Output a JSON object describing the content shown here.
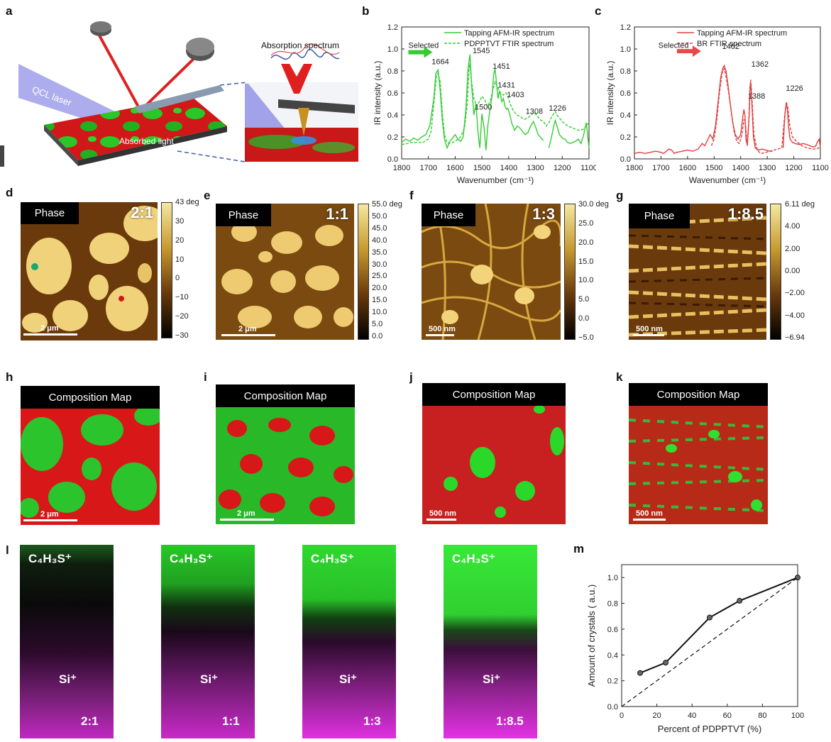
{
  "panel_letters": {
    "a": "a",
    "b": "b",
    "c": "c",
    "d": "d",
    "e": "e",
    "f": "f",
    "g": "g",
    "h": "h",
    "i": "i",
    "j": "j",
    "k": "k",
    "l": "l",
    "m": "m"
  },
  "panel_a": {
    "qcl_label": "QCL laser",
    "absorbed_label": "Absorbed light",
    "spectrum_label": "Absorption spectrum"
  },
  "phase_panels": [
    {
      "tag": "Phase",
      "ratio": "2:1",
      "scale": "2 μm",
      "ticks": [
        "43 deg",
        "30",
        "20",
        "10",
        "0",
        "−10",
        "−20",
        "−30"
      ]
    },
    {
      "tag": "Phase",
      "ratio": "1:1",
      "scale": "2 μm",
      "ticks": [
        "55.0 deg",
        "50.0",
        "45.0",
        "40.0",
        "35.0",
        "30.0",
        "25.0",
        "20.0",
        "15.0",
        "10.0",
        "5.0",
        "0.0"
      ]
    },
    {
      "tag": "Phase",
      "ratio": "1:3",
      "scale": "500 nm",
      "ticks": [
        "30.0 deg",
        "25.0",
        "20.0",
        "15.0",
        "10.0",
        "5.0",
        "0.0",
        "−5.0"
      ]
    },
    {
      "tag": "Phase",
      "ratio": "1:8.5",
      "scale": "500 nm",
      "ticks": [
        "6.11 deg",
        "4.00",
        "2.00",
        "0.00",
        "−2.00",
        "−4.00",
        "−6.94"
      ]
    }
  ],
  "comp_panels": [
    {
      "tag": "Composition Map",
      "scale": "2 μm"
    },
    {
      "tag": "Composition Map",
      "scale": "2 μm"
    },
    {
      "tag": "Composition Map",
      "scale": "500 nm"
    },
    {
      "tag": "Composition Map",
      "scale": "500 nm"
    }
  ],
  "tof_panels": [
    {
      "top": "C₄H₃S⁺",
      "mid": "Si⁺",
      "ratio": "2:1"
    },
    {
      "top": "C₄H₃S⁺",
      "mid": "Si⁺",
      "ratio": "1:1"
    },
    {
      "top": "C₄H₃S⁺",
      "mid": "Si⁺",
      "ratio": "1:3"
    },
    {
      "top": "C₄H₃S⁺",
      "mid": "Si⁺",
      "ratio": "1:8.5"
    }
  ],
  "chart_data": [
    {
      "type": "line",
      "panel": "b",
      "xlabel": "Wavenumber (cm⁻¹)",
      "ylabel": "IR intensity (a.u.)",
      "xlim": [
        1800,
        1100
      ],
      "ylim": [
        0,
        1.2
      ],
      "xticks": [
        1800,
        1700,
        1600,
        1500,
        1400,
        1300,
        1200,
        1100
      ],
      "yticks": [
        0.0,
        0.2,
        0.4,
        0.6,
        0.8,
        1.0,
        1.2
      ],
      "color": "#33cc33",
      "series": [
        {
          "name": "Tapping AFM-IR spectrum",
          "style": "solid",
          "x": [
            1800,
            1785,
            1770,
            1755,
            1740,
            1725,
            1710,
            1695,
            1680,
            1672,
            1664,
            1656,
            1648,
            1640,
            1630,
            1620,
            1610,
            1600,
            1590,
            1580,
            1570,
            1560,
            1552,
            1545,
            1538,
            1530,
            1522,
            1515,
            1508,
            1500,
            1492,
            1485,
            1478,
            1470,
            1462,
            1456,
            1451,
            1446,
            1440,
            1434,
            1431,
            1426,
            1420,
            1414,
            1408,
            1403,
            1396,
            1388,
            1378,
            1368,
            1358,
            1348,
            1338,
            1328,
            1318,
            1308,
            1298,
            1290,
            1282,
            1276,
            1270
          ],
          "y": [
            0.15,
            0.18,
            0.16,
            0.19,
            0.17,
            0.2,
            0.22,
            0.3,
            0.55,
            0.78,
            0.81,
            0.62,
            0.35,
            0.18,
            0.1,
            0.16,
            0.19,
            0.22,
            0.18,
            0.16,
            0.2,
            0.45,
            0.82,
            0.95,
            0.65,
            0.4,
            0.5,
            0.25,
            0.1,
            0.41,
            0.28,
            0.08,
            0.3,
            0.45,
            0.58,
            0.77,
            0.82,
            0.7,
            0.55,
            0.62,
            0.59,
            0.52,
            0.55,
            0.48,
            0.45,
            0.46,
            0.4,
            0.32,
            0.26,
            0.3,
            0.28,
            0.25,
            0.22,
            0.24,
            0.3,
            0.34,
            0.28,
            0.22,
            0.2,
            0.18,
            0.17
          ]
        },
        {
          "name": "",
          "style": "solid",
          "x": [
            1250,
            1240,
            1230,
            1226,
            1220,
            1210,
            1200,
            1190,
            1180,
            1170,
            1160,
            1150,
            1140,
            1130,
            1120,
            1110,
            1100
          ],
          "y": [
            0.1,
            0.2,
            0.32,
            0.35,
            0.3,
            0.22,
            0.19,
            0.18,
            0.15,
            0.14,
            0.15,
            0.16,
            0.18,
            0.14,
            0.22,
            0.33,
            0.1
          ]
        },
        {
          "name": "PDPPTVT FTIR spectrum",
          "style": "dashed",
          "x": [
            1800,
            1760,
            1720,
            1700,
            1690,
            1680,
            1670,
            1664,
            1656,
            1648,
            1640,
            1630,
            1620,
            1600,
            1580,
            1565,
            1555,
            1548,
            1545,
            1540,
            1530,
            1520,
            1510,
            1500,
            1490,
            1480,
            1470,
            1460,
            1451,
            1440,
            1431,
            1420,
            1410,
            1403,
            1395,
            1385,
            1370,
            1355,
            1340,
            1325,
            1308,
            1295,
            1285,
            1270,
            1260,
            1250,
            1240,
            1230,
            1226,
            1220,
            1200,
            1180,
            1160,
            1140,
            1120,
            1110,
            1100
          ],
          "y": [
            0.13,
            0.15,
            0.15,
            0.18,
            0.25,
            0.5,
            0.76,
            0.78,
            0.7,
            0.42,
            0.22,
            0.15,
            0.14,
            0.16,
            0.2,
            0.28,
            0.5,
            0.82,
            0.87,
            0.72,
            0.55,
            0.48,
            0.52,
            0.57,
            0.54,
            0.48,
            0.52,
            0.62,
            0.7,
            0.64,
            0.6,
            0.58,
            0.6,
            0.57,
            0.5,
            0.45,
            0.4,
            0.38,
            0.36,
            0.38,
            0.42,
            0.4,
            0.36,
            0.34,
            0.3,
            0.33,
            0.38,
            0.42,
            0.43,
            0.4,
            0.34,
            0.3,
            0.28,
            0.26,
            0.27,
            0.3,
            0.33
          ]
        }
      ],
      "annotations": [
        {
          "text": "Selected",
          "x": 1775,
          "y": 1.01
        },
        {
          "text": "1664",
          "x": 1688,
          "y": 0.86
        },
        {
          "text": "1545",
          "x": 1535,
          "y": 0.96
        },
        {
          "text": "1451",
          "x": 1460,
          "y": 0.82
        },
        {
          "text": "1500",
          "x": 1527,
          "y": 0.45
        },
        {
          "text": "1431",
          "x": 1441,
          "y": 0.65
        },
        {
          "text": "1403",
          "x": 1407,
          "y": 0.56
        },
        {
          "text": "1308",
          "x": 1337,
          "y": 0.41
        },
        {
          "text": "1226",
          "x": 1250,
          "y": 0.44
        }
      ]
    },
    {
      "type": "line",
      "panel": "c",
      "xlabel": "Wavenumber (cm⁻¹)",
      "ylabel": "IR intensity (a.u.)",
      "xlim": [
        1800,
        1100
      ],
      "ylim": [
        0,
        1.2
      ],
      "xticks": [
        1800,
        1700,
        1600,
        1500,
        1400,
        1300,
        1200,
        1100
      ],
      "yticks": [
        0.0,
        0.2,
        0.4,
        0.6,
        0.8,
        1.0,
        1.2
      ],
      "color": "#e04040",
      "series": [
        {
          "name": "Tapping AFM-IR spectrum",
          "style": "solid",
          "x": [
            1800,
            1780,
            1760,
            1740,
            1720,
            1700,
            1690,
            1680,
            1670,
            1660,
            1650,
            1640,
            1620,
            1600,
            1580,
            1560,
            1545,
            1535,
            1525,
            1515,
            1505,
            1495,
            1485,
            1475,
            1468,
            1462,
            1455,
            1448,
            1440,
            1430,
            1420,
            1410,
            1400,
            1392,
            1388,
            1384,
            1380,
            1375,
            1368,
            1365,
            1362,
            1358,
            1352,
            1345,
            1335,
            1320,
            1305,
            1290,
            1280
          ],
          "y": [
            0.05,
            0.06,
            0.05,
            0.06,
            0.07,
            0.06,
            0.05,
            0.07,
            0.09,
            0.08,
            0.05,
            0.06,
            0.07,
            0.08,
            0.07,
            0.09,
            0.14,
            0.12,
            0.17,
            0.22,
            0.18,
            0.3,
            0.52,
            0.74,
            0.82,
            0.85,
            0.8,
            0.68,
            0.52,
            0.33,
            0.22,
            0.18,
            0.22,
            0.38,
            0.45,
            0.4,
            0.18,
            0.12,
            0.4,
            0.62,
            0.69,
            0.52,
            0.2,
            0.1,
            0.08,
            0.09,
            0.08,
            0.07,
            0.07
          ]
        },
        {
          "name": "",
          "style": "solid",
          "x": [
            1240,
            1236,
            1232,
            1228,
            1224,
            1220,
            1214,
            1205,
            1195,
            1180,
            1165,
            1150,
            1140,
            1130,
            1120,
            1115,
            1110,
            1104,
            1100
          ],
          "y": [
            0.1,
            0.3,
            0.44,
            0.5,
            0.45,
            0.3,
            0.18,
            0.15,
            0.14,
            0.13,
            0.14,
            0.13,
            0.12,
            0.11,
            0.11,
            0.13,
            0.16,
            0.18,
            0.1
          ]
        },
        {
          "name": "BR FTIR spectrum",
          "style": "dashed",
          "x": [
            1510,
            1500,
            1490,
            1480,
            1470,
            1462,
            1455,
            1445,
            1435,
            1425,
            1415,
            1405,
            1395,
            1388,
            1382,
            1376,
            1370,
            1365,
            1362,
            1358,
            1350,
            1340,
            1330,
            1320,
            1245,
            1235,
            1228,
            1222,
            1215,
            1205,
            1190,
            1170,
            1150,
            1130,
            1115,
            1105,
            1100
          ],
          "y": [
            0.12,
            0.18,
            0.35,
            0.6,
            0.78,
            0.82,
            0.75,
            0.6,
            0.42,
            0.25,
            0.16,
            0.14,
            0.22,
            0.36,
            0.32,
            0.14,
            0.3,
            0.66,
            0.72,
            0.58,
            0.22,
            0.1,
            0.06,
            0.05,
            0.1,
            0.38,
            0.52,
            0.46,
            0.3,
            0.2,
            0.16,
            0.12,
            0.1,
            0.09,
            0.09,
            0.1,
            0.12
          ]
        }
      ],
      "annotations": [
        {
          "text": "Selected",
          "x": 1710,
          "y": 1.01
        },
        {
          "text": "1462",
          "x": 1470,
          "y": 1.0
        },
        {
          "text": "1362",
          "x": 1360,
          "y": 0.84
        },
        {
          "text": "1388",
          "x": 1373,
          "y": 0.55
        },
        {
          "text": "1226",
          "x": 1230,
          "y": 0.62
        }
      ]
    },
    {
      "type": "line",
      "panel": "m",
      "xlabel": "Percent of PDPPTVT (%)",
      "ylabel": "Amount of crystals ( a.u.)",
      "xlim": [
        0,
        100
      ],
      "ylim": [
        0,
        1.1
      ],
      "xticks": [
        0,
        20,
        40,
        60,
        80,
        100
      ],
      "yticks": [
        0.0,
        0.2,
        0.4,
        0.6,
        0.8,
        1.0
      ],
      "series": [
        {
          "name": "",
          "style": "solid-markers",
          "x": [
            10.5,
            25,
            50,
            67,
            100
          ],
          "y": [
            0.26,
            0.34,
            0.69,
            0.82,
            1.0
          ]
        },
        {
          "name": "",
          "style": "dashed",
          "x": [
            0,
            100
          ],
          "y": [
            0,
            1.0
          ]
        }
      ]
    }
  ]
}
